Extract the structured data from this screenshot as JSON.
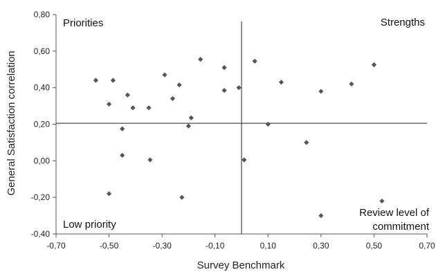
{
  "chart_data": {
    "type": "scatter",
    "title": "",
    "xlabel": "Survey Benchmark",
    "ylabel": "General Satisfaction correlation",
    "xlim": [
      -0.7,
      0.7
    ],
    "ylim": [
      -0.4,
      0.8
    ],
    "x_ticks": [
      "-0,70",
      "-0,50",
      "-0,30",
      "-0,10",
      "0,10",
      "0,30",
      "0,50",
      "0,70"
    ],
    "y_ticks": [
      "-0,40",
      "-0,20",
      "0,00",
      "0,20",
      "0,40",
      "0,60",
      "0,80"
    ],
    "marker_color": "#555555",
    "grid": false,
    "reference_lines": {
      "x": 0.0,
      "y": 0.205
    },
    "quadrant_labels": {
      "top_left": "Priorities",
      "top_right": "Strengths",
      "bottom_left": "Low priority",
      "bottom_right_line1": "Review level of",
      "bottom_right_line2": "commitment"
    },
    "points": [
      {
        "x": -0.55,
        "y": 0.44
      },
      {
        "x": -0.485,
        "y": 0.44
      },
      {
        "x": -0.5,
        "y": 0.31
      },
      {
        "x": -0.43,
        "y": 0.36
      },
      {
        "x": -0.41,
        "y": 0.29
      },
      {
        "x": -0.45,
        "y": 0.175
      },
      {
        "x": -0.45,
        "y": 0.03
      },
      {
        "x": -0.5,
        "y": -0.18
      },
      {
        "x": -0.35,
        "y": 0.29
      },
      {
        "x": -0.345,
        "y": 0.005
      },
      {
        "x": -0.29,
        "y": 0.47
      },
      {
        "x": -0.26,
        "y": 0.34
      },
      {
        "x": -0.235,
        "y": 0.415
      },
      {
        "x": -0.225,
        "y": -0.2
      },
      {
        "x": -0.155,
        "y": 0.555
      },
      {
        "x": -0.19,
        "y": 0.235
      },
      {
        "x": -0.2,
        "y": 0.19
      },
      {
        "x": -0.065,
        "y": 0.51
      },
      {
        "x": -0.065,
        "y": 0.385
      },
      {
        "x": -0.01,
        "y": 0.4
      },
      {
        "x": 0.01,
        "y": 0.005
      },
      {
        "x": 0.05,
        "y": 0.545
      },
      {
        "x": 0.1,
        "y": 0.2
      },
      {
        "x": 0.15,
        "y": 0.43
      },
      {
        "x": 0.245,
        "y": 0.1
      },
      {
        "x": 0.3,
        "y": 0.38
      },
      {
        "x": 0.3,
        "y": -0.3
      },
      {
        "x": 0.415,
        "y": 0.42
      },
      {
        "x": 0.5,
        "y": 0.525
      },
      {
        "x": 0.53,
        "y": -0.22
      }
    ]
  }
}
